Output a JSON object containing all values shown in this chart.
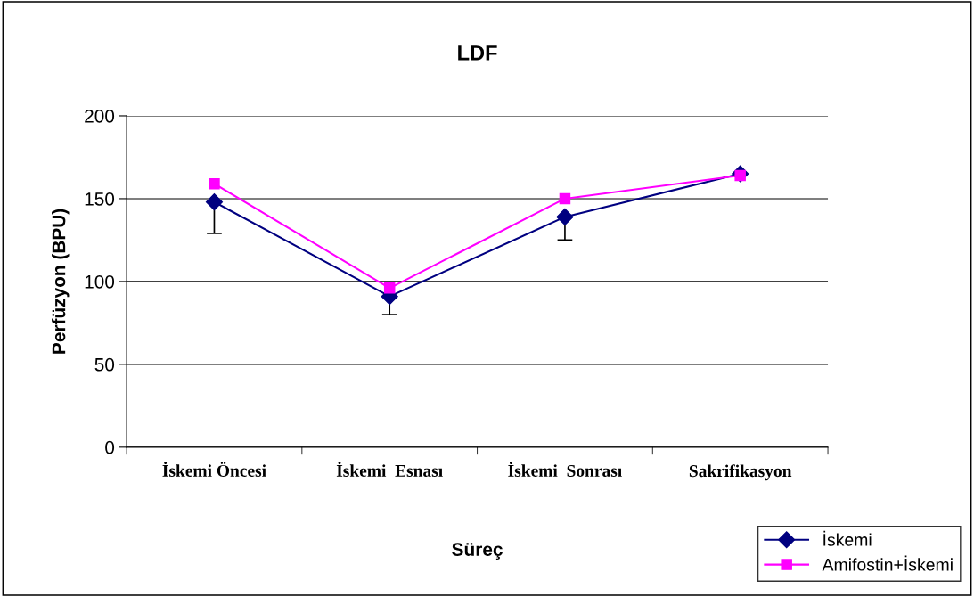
{
  "chart_data": {
    "type": "line",
    "title": "LDF",
    "xlabel": "Süreç",
    "ylabel": "Perfüzyon (BPU)",
    "categories": [
      "İskemi Öncesi",
      "İskemi  Esnası",
      "İskemi  Sonrası",
      "Sakrifikasyon"
    ],
    "series": [
      {
        "name": "İskemi",
        "color": "#000080",
        "marker": "diamond",
        "values": [
          148,
          91,
          139,
          165
        ],
        "errors": [
          [
            129,
            148
          ],
          [
            80,
            91
          ],
          [
            125,
            139
          ],
          null
        ]
      },
      {
        "name": "Amifostin+İskemi",
        "color": "#ff00ff",
        "marker": "square",
        "values": [
          159,
          96,
          150,
          164
        ]
      }
    ],
    "ylim": [
      0,
      200
    ],
    "yticks": [
      0,
      50,
      100,
      150,
      200
    ],
    "grid": "y",
    "legend": "bottom right",
    "line_style": "solid"
  }
}
